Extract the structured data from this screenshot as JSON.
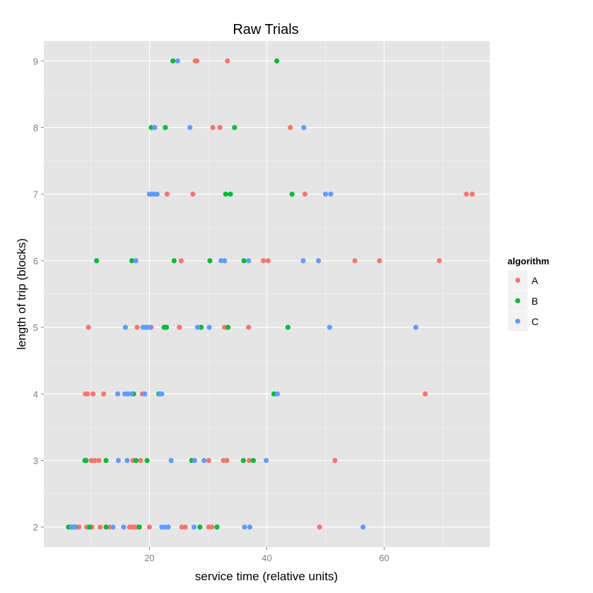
{
  "chart_data": {
    "type": "scatter",
    "title": "Raw Trials",
    "xlabel": "service time (relative units)",
    "ylabel": "length of trip (blocks)",
    "xlim": [
      2,
      78
    ],
    "ylim": [
      1.7,
      9.3
    ],
    "x_ticks": [
      20,
      40,
      60
    ],
    "y_ticks": [
      2,
      3,
      4,
      5,
      6,
      7,
      8,
      9
    ],
    "grid": true,
    "legend": {
      "title": "algorithm",
      "position": "right"
    },
    "colors": {
      "A": "#F8766D",
      "B": "#00BA38",
      "C": "#619CFF"
    },
    "series": [
      {
        "name": "A",
        "points": [
          [
            27.8,
            9
          ],
          [
            28.1,
            9
          ],
          [
            33.3,
            9
          ],
          [
            30.8,
            8
          ],
          [
            32.0,
            8
          ],
          [
            44.0,
            8
          ],
          [
            23.0,
            7
          ],
          [
            27.4,
            7
          ],
          [
            46.5,
            7
          ],
          [
            74.0,
            7
          ],
          [
            75.0,
            7
          ],
          [
            25.4,
            6
          ],
          [
            39.4,
            6
          ],
          [
            40.2,
            6
          ],
          [
            55.0,
            6
          ],
          [
            59.2,
            6
          ],
          [
            69.4,
            6
          ],
          [
            9.6,
            5
          ],
          [
            17.9,
            5
          ],
          [
            20.3,
            5
          ],
          [
            25.1,
            5
          ],
          [
            32.8,
            5
          ],
          [
            36.9,
            5
          ],
          [
            9.1,
            4
          ],
          [
            9.4,
            4
          ],
          [
            10.4,
            4
          ],
          [
            12.2,
            4
          ],
          [
            18.8,
            4
          ],
          [
            67.0,
            4
          ],
          [
            10.1,
            3
          ],
          [
            10.7,
            3
          ],
          [
            11.4,
            3
          ],
          [
            17.2,
            3
          ],
          [
            18.5,
            3
          ],
          [
            30.1,
            3
          ],
          [
            32.6,
            3
          ],
          [
            33.2,
            3
          ],
          [
            37.0,
            3
          ],
          [
            51.6,
            3
          ],
          [
            8.0,
            2
          ],
          [
            9.3,
            2
          ],
          [
            10.2,
            2
          ],
          [
            11.6,
            2
          ],
          [
            13.2,
            2
          ],
          [
            16.6,
            2
          ],
          [
            17.0,
            2
          ],
          [
            17.4,
            2
          ],
          [
            17.9,
            2
          ],
          [
            20.0,
            2
          ],
          [
            25.5,
            2
          ],
          [
            26.1,
            2
          ],
          [
            30.1,
            2
          ],
          [
            30.6,
            2
          ],
          [
            49.0,
            2
          ]
        ]
      },
      {
        "name": "B",
        "points": [
          [
            24.0,
            9
          ],
          [
            41.7,
            9
          ],
          [
            20.3,
            8
          ],
          [
            22.7,
            8
          ],
          [
            34.5,
            8
          ],
          [
            33.0,
            7
          ],
          [
            33.8,
            7
          ],
          [
            44.3,
            7
          ],
          [
            11.0,
            6
          ],
          [
            17.0,
            6
          ],
          [
            24.2,
            6
          ],
          [
            30.3,
            6
          ],
          [
            36.1,
            6
          ],
          [
            22.5,
            5
          ],
          [
            22.9,
            5
          ],
          [
            28.8,
            5
          ],
          [
            33.4,
            5
          ],
          [
            43.6,
            5
          ],
          [
            17.3,
            4
          ],
          [
            21.6,
            4
          ],
          [
            41.2,
            4
          ],
          [
            9.0,
            3
          ],
          [
            9.2,
            3
          ],
          [
            12.6,
            3
          ],
          [
            17.7,
            3
          ],
          [
            19.6,
            3
          ],
          [
            27.2,
            3
          ],
          [
            36.0,
            3
          ],
          [
            37.7,
            3
          ],
          [
            6.2,
            2
          ],
          [
            6.6,
            2
          ],
          [
            7.0,
            2
          ],
          [
            7.4,
            2
          ],
          [
            9.8,
            2
          ],
          [
            12.6,
            2
          ],
          [
            18.3,
            2
          ],
          [
            28.6,
            2
          ],
          [
            31.5,
            2
          ]
        ]
      },
      {
        "name": "C",
        "points": [
          [
            24.8,
            9
          ],
          [
            20.9,
            8
          ],
          [
            26.9,
            8
          ],
          [
            46.3,
            8
          ],
          [
            20.0,
            7
          ],
          [
            20.4,
            7
          ],
          [
            20.8,
            7
          ],
          [
            21.3,
            7
          ],
          [
            50.0,
            7
          ],
          [
            50.9,
            7
          ],
          [
            17.7,
            6
          ],
          [
            32.2,
            6
          ],
          [
            32.8,
            6
          ],
          [
            36.9,
            6
          ],
          [
            46.2,
            6
          ],
          [
            48.8,
            6
          ],
          [
            15.9,
            5
          ],
          [
            18.9,
            5
          ],
          [
            19.3,
            5
          ],
          [
            19.6,
            5
          ],
          [
            20.1,
            5
          ],
          [
            28.2,
            5
          ],
          [
            30.2,
            5
          ],
          [
            50.7,
            5
          ],
          [
            65.4,
            5
          ],
          [
            14.6,
            4
          ],
          [
            15.8,
            4
          ],
          [
            16.3,
            4
          ],
          [
            16.9,
            4
          ],
          [
            19.2,
            4
          ],
          [
            21.8,
            4
          ],
          [
            22.1,
            4
          ],
          [
            41.8,
            4
          ],
          [
            14.7,
            3
          ],
          [
            16.2,
            3
          ],
          [
            23.7,
            3
          ],
          [
            27.7,
            3
          ],
          [
            29.3,
            3
          ],
          [
            39.9,
            3
          ],
          [
            6.7,
            2
          ],
          [
            7.3,
            2
          ],
          [
            13.8,
            2
          ],
          [
            15.6,
            2
          ],
          [
            22.1,
            2
          ],
          [
            22.7,
            2
          ],
          [
            23.2,
            2
          ],
          [
            27.6,
            2
          ],
          [
            36.2,
            2
          ],
          [
            37.1,
            2
          ],
          [
            56.4,
            2
          ]
        ]
      }
    ]
  }
}
